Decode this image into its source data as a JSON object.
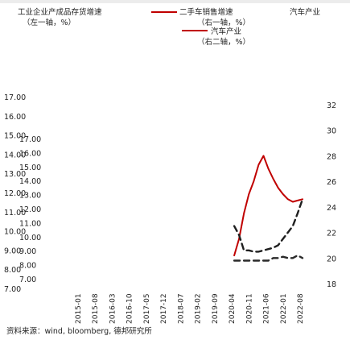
{
  "legend": {
    "series1_label": "工业企业产成品存货增速",
    "series1_unit": "（左一轴，%）",
    "series2_label": "二手车销售增速",
    "series2_unit": "（右一轴，%）",
    "series3_label": "汽车产业",
    "series3_unit": "（右二轴，%）"
  },
  "footer": {
    "source": "资料来源：wind, bloomberg, 德邦研究所"
  },
  "colors": {
    "series1": "#c00000",
    "series2": "#2a2a2a",
    "series3": "#1f1f1f",
    "strip": "#ececec"
  },
  "chart_data": {
    "type": "line",
    "title": "",
    "x": [
      "2015-01",
      "2015-08",
      "2016-03",
      "2016-10",
      "2017-05",
      "2017-12",
      "2018-07",
      "2019-02",
      "2019-09",
      "2020-04",
      "2020-11",
      "2021-06",
      "2022-01",
      "2022-08"
    ],
    "left_axis_1": {
      "ylim": [
        7,
        17
      ],
      "ticks": [
        "7.00",
        "8.00",
        "9.00",
        "10.00",
        "11.00",
        "12.00",
        "13.00",
        "14.00",
        "15.00",
        "16.00",
        "17.00"
      ]
    },
    "left_axis_2": {
      "ylim": [
        7,
        17
      ],
      "ticks": [
        "7.00",
        "8.00",
        "9.00",
        "10.00",
        "11.00",
        "12.00",
        "13.00",
        "14.00",
        "15.00",
        "16.00",
        "17.00"
      ]
    },
    "right_axis": {
      "ylim": [
        18,
        32
      ],
      "ticks": [
        "18",
        "20",
        "22",
        "24",
        "26",
        "28",
        "30",
        "32"
      ]
    },
    "series": [
      {
        "name": "工业企业产成品存货增速",
        "axis": "right",
        "style": "solid",
        "x": [
          "2020-04",
          "2020-06",
          "2020-08",
          "2020-10",
          "2020-12",
          "2021-02",
          "2021-04",
          "2021-06",
          "2021-08",
          "2021-10",
          "2021-12",
          "2022-02",
          "2022-04",
          "2022-06",
          "2022-08"
        ],
        "values": [
          20.2,
          21.5,
          23.5,
          25.0,
          26.0,
          27.3,
          28.0,
          27.0,
          26.2,
          25.5,
          25.0,
          24.6,
          24.4,
          24.5,
          24.6
        ]
      },
      {
        "name": "二手车销售增速",
        "axis": "right",
        "style": "dashed",
        "x": [
          "2020-04",
          "2020-06",
          "2020-08",
          "2020-10",
          "2020-12",
          "2021-02",
          "2021-04",
          "2021-06",
          "2021-08",
          "2021-10",
          "2021-12",
          "2022-02",
          "2022-04",
          "2022-06",
          "2022-08"
        ],
        "values": [
          19.8,
          19.8,
          19.8,
          19.8,
          19.8,
          19.8,
          19.8,
          19.8,
          20.0,
          20.0,
          20.1,
          20.0,
          20.0,
          20.2,
          20.0
        ]
      },
      {
        "name": "汽车产业",
        "axis": "right",
        "style": "dashed",
        "x": [
          "2020-04",
          "2020-06",
          "2020-08",
          "2020-10",
          "2020-12",
          "2021-02",
          "2021-04",
          "2021-06",
          "2021-08",
          "2021-10",
          "2021-12",
          "2022-02",
          "2022-04",
          "2022-06",
          "2022-08"
        ],
        "values": [
          22.5,
          21.8,
          20.6,
          20.6,
          20.5,
          20.5,
          20.6,
          20.7,
          20.8,
          21.0,
          21.5,
          22.0,
          22.5,
          23.5,
          24.6
        ]
      }
    ]
  }
}
